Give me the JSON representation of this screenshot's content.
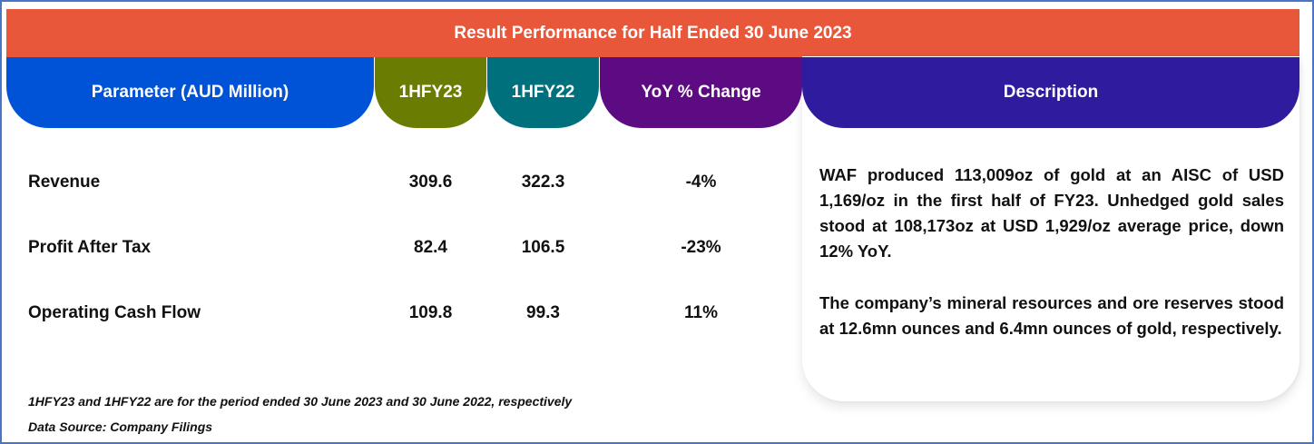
{
  "title": "Result Performance for Half Ended 30 June 2023",
  "columns": {
    "parameter": "Parameter (AUD Million)",
    "h1fy23": "1HFY23",
    "h1fy22": "1HFY22",
    "yoy": "YoY % Change",
    "description": "Description"
  },
  "colors": {
    "banner": "#e8573a",
    "parameter": "#0053d6",
    "h1fy23": "#6b7c02",
    "h1fy22": "#00707d",
    "yoy": "#5d0b82",
    "description": "#2e1b9e",
    "border": "#4a74c4"
  },
  "rows": [
    {
      "label": "Revenue",
      "h1fy23": "309.6",
      "h1fy22": "322.3",
      "yoy": "-4%"
    },
    {
      "label": "Profit After Tax",
      "h1fy23": "82.4",
      "h1fy22": "106.5",
      "yoy": "-23%"
    },
    {
      "label": "Operating Cash Flow",
      "h1fy23": "109.8",
      "h1fy22": "99.3",
      "yoy": "11%"
    }
  ],
  "description": {
    "paragraph1": "WAF produced 113,009oz of gold at an AISC of USD 1,169/oz in the first half of FY23. Unhedged gold sales stood at 108,173oz at USD 1,929/oz average price, down 12% YoY.",
    "paragraph2": "The company’s mineral resources and ore reserves stood at 12.6mn ounces and 6.4mn ounces of gold, respectively."
  },
  "footnotes": {
    "note": "1HFY23 and 1HFY22 are for the period ended 30 June 2023 and 30 June 2022, respectively",
    "source": "Data Source: Company Filings"
  }
}
